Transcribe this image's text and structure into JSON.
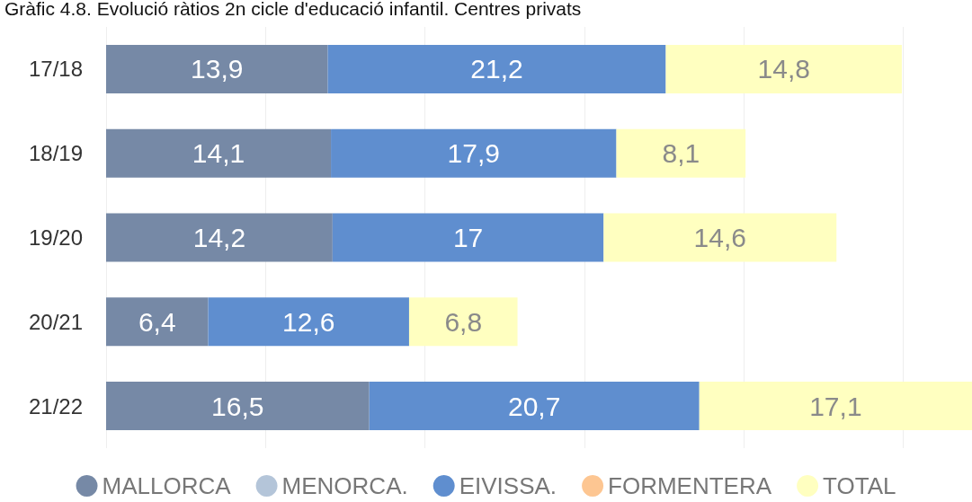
{
  "chart_data": {
    "type": "bar",
    "orientation": "horizontal",
    "stacked": true,
    "title": "Gràfic 4.8. Evolució ràtios 2n cicle d'educació infantil. Centres privats",
    "categories": [
      "17/18",
      "18/19",
      "19/20",
      "20/21",
      "21/22"
    ],
    "series": [
      {
        "name": "MALLORCA",
        "color": "#7689a6",
        "values": [
          13.9,
          14.1,
          14.2,
          6.4,
          16.5
        ],
        "value_labels": [
          "13,9",
          "14,1",
          "14,2",
          "6,4",
          "16,5"
        ]
      },
      {
        "name": "MENORCA.",
        "color": "#b4c5d9",
        "values": [
          null,
          null,
          null,
          null,
          null
        ]
      },
      {
        "name": "EIVISSA.",
        "color": "#5f8ecf",
        "values": [
          21.2,
          17.9,
          17,
          12.6,
          20.7
        ],
        "value_labels": [
          "21,2",
          "17,9",
          "17",
          "12,6",
          "20,7"
        ]
      },
      {
        "name": "FORMENTERA",
        "color": "#fdc692",
        "values": [
          null,
          null,
          null,
          null,
          null
        ]
      },
      {
        "name": "TOTAL",
        "color": "#ffffc0",
        "values": [
          14.8,
          8.1,
          14.6,
          6.8,
          17.1
        ],
        "value_labels": [
          "14,8",
          "8,1",
          "14,6",
          "6,8",
          "17,1"
        ]
      }
    ],
    "xticks": [
      {
        "value": 0,
        "label": null
      },
      {
        "value": 10,
        "label": null
      },
      {
        "value": 20,
        "label": null
      },
      {
        "value": 30,
        "label": null
      },
      {
        "value": 40,
        "label": null
      },
      {
        "value": 50,
        "label": null
      }
    ],
    "tick_labels": "y",
    "grid": "x",
    "legend": "bottom"
  }
}
